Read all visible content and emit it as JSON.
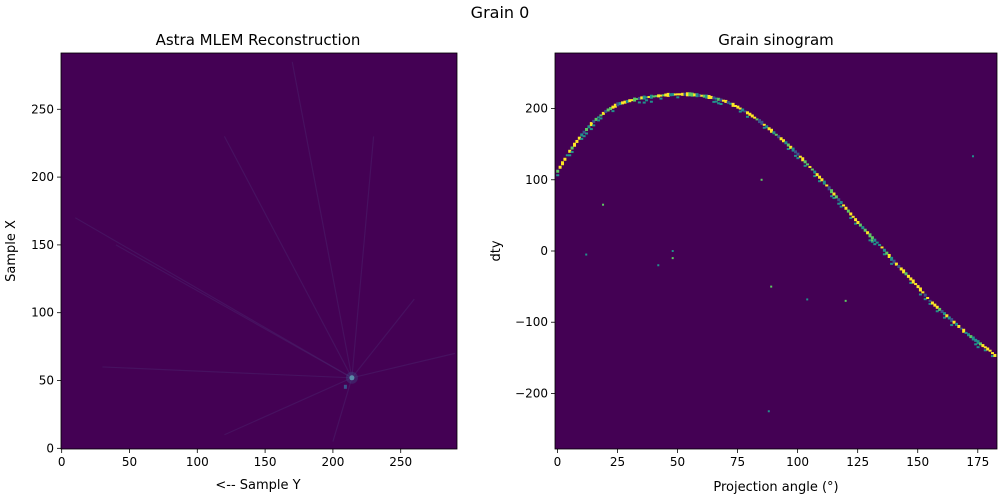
{
  "figure": {
    "suptitle": "Grain 0",
    "background": "#ffffff",
    "colormap": [
      "#440154",
      "#3b528b",
      "#21918c",
      "#5ec962",
      "#fde725"
    ]
  },
  "chart_data": [
    {
      "type": "heatmap",
      "title": "Astra MLEM Reconstruction",
      "xlabel": "<-- Sample Y",
      "ylabel": "Sample X",
      "xlim": [
        -0.5,
        291.5
      ],
      "ylim": [
        -0.5,
        291.5
      ],
      "xticks": [
        0,
        50,
        100,
        150,
        200,
        250
      ],
      "yticks": [
        0,
        50,
        100,
        150,
        200,
        250
      ],
      "xticklabels": [
        "0",
        "50",
        "100",
        "150",
        "200",
        "250"
      ],
      "yticklabels": [
        "0",
        "50",
        "100",
        "150",
        "200",
        "250"
      ],
      "background_value": "#440154",
      "hotspot": {
        "x": 214,
        "y": 52,
        "note": "faint bright spot with radial streaks"
      },
      "streaks_to": [
        [
          10,
          170
        ],
        [
          40,
          150
        ],
        [
          120,
          230
        ],
        [
          170,
          285
        ],
        [
          230,
          230
        ],
        [
          260,
          110
        ],
        [
          30,
          60
        ],
        [
          120,
          10
        ],
        [
          200,
          5
        ],
        [
          290,
          70
        ]
      ]
    },
    {
      "type": "heatmap",
      "title": "Grain sinogram",
      "xlabel": "Projection angle (°)",
      "ylabel": "dty",
      "xlim": [
        -1,
        183
      ],
      "ylim": [
        -278,
        278
      ],
      "xticks": [
        0,
        25,
        50,
        75,
        100,
        125,
        150,
        175
      ],
      "yticks": [
        -200,
        -100,
        0,
        100,
        200
      ],
      "xticklabels": [
        "0",
        "25",
        "50",
        "75",
        "100",
        "125",
        "150",
        "175"
      ],
      "yticklabels": [
        "−200",
        "−100",
        "0",
        "100",
        "200"
      ],
      "background_value": "#440154",
      "trace": [
        [
          0,
          112
        ],
        [
          5,
          140
        ],
        [
          10,
          163
        ],
        [
          15,
          182
        ],
        [
          20,
          196
        ],
        [
          25,
          206
        ],
        [
          30,
          211
        ],
        [
          35,
          215
        ],
        [
          40,
          217
        ],
        [
          45,
          219
        ],
        [
          50,
          220
        ],
        [
          55,
          220
        ],
        [
          60,
          218
        ],
        [
          65,
          215
        ],
        [
          70,
          210
        ],
        [
          75,
          202
        ],
        [
          80,
          192
        ],
        [
          85,
          180
        ],
        [
          90,
          166
        ],
        [
          95,
          152
        ],
        [
          100,
          136
        ],
        [
          105,
          118
        ],
        [
          110,
          100
        ],
        [
          115,
          80
        ],
        [
          120,
          60
        ],
        [
          125,
          40
        ],
        [
          130,
          22
        ],
        [
          135,
          5
        ],
        [
          140,
          -15
        ],
        [
          145,
          -32
        ],
        [
          150,
          -50
        ],
        [
          155,
          -70
        ],
        [
          160,
          -85
        ],
        [
          165,
          -100
        ],
        [
          170,
          -115
        ],
        [
          175,
          -128
        ],
        [
          180,
          -140
        ],
        [
          183,
          -150
        ]
      ],
      "isolated_points": [
        [
          12,
          -5
        ],
        [
          19,
          65
        ],
        [
          42,
          -20
        ],
        [
          48,
          -10
        ],
        [
          48,
          0
        ],
        [
          89,
          -50
        ],
        [
          88,
          -225
        ],
        [
          85,
          100
        ],
        [
          104,
          -68
        ],
        [
          131,
          15
        ],
        [
          173,
          133
        ],
        [
          120,
          -70
        ]
      ]
    }
  ]
}
